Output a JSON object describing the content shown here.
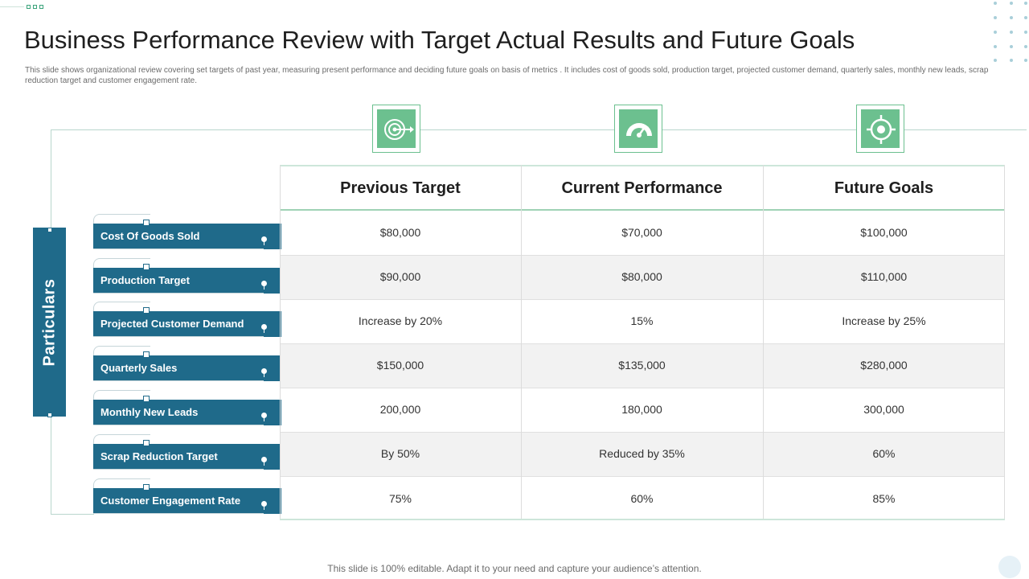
{
  "slide": {
    "title": "Business Performance Review with Target Actual Results and Future Goals",
    "subtitle": "This slide shows organizational review covering set targets of past year, measuring present performance and deciding future goals on basis of metrics . It includes cost of goods sold, production target, projected customer demand,  quarterly sales, monthly new leads, scrap reduction target and customer engagement  rate.",
    "footer": "This slide is 100% editable. Adapt it to your need and capture your audience’s attention."
  },
  "particulars_label": "Particulars",
  "columns": [
    {
      "label": "Previous Target",
      "icon": "target-arrow-icon"
    },
    {
      "label": "Current Performance",
      "icon": "speedometer-icon"
    },
    {
      "label": "Future Goals",
      "icon": "crosshair-icon"
    }
  ],
  "rows": [
    {
      "label": "Cost Of Goods Sold",
      "values": [
        "$80,000",
        "$70,000",
        "$100,000"
      ]
    },
    {
      "label": "Production  Target",
      "values": [
        "$90,000",
        "$80,000",
        "$110,000"
      ]
    },
    {
      "label": "Projected Customer  Demand",
      "values": [
        "Increase by 20%",
        "15%",
        "Increase by 25%"
      ]
    },
    {
      "label": "Quarterly Sales",
      "values": [
        "$150,000",
        "$135,000",
        "$280,000"
      ]
    },
    {
      "label": "Monthly  New Leads",
      "values": [
        "200,000",
        "180,000",
        "300,000"
      ]
    },
    {
      "label": "Scrap Reduction  Target",
      "values": [
        "By 50%",
        "Reduced by 35%",
        "60%"
      ]
    },
    {
      "label": "Customer  Engagement  Rate",
      "values": [
        "75%",
        "60%",
        "85%"
      ]
    }
  ],
  "colors": {
    "row_label_bg": "#1f6a8a",
    "icon_green": "#6cc08f",
    "alt_row": "#f2f2f2"
  }
}
